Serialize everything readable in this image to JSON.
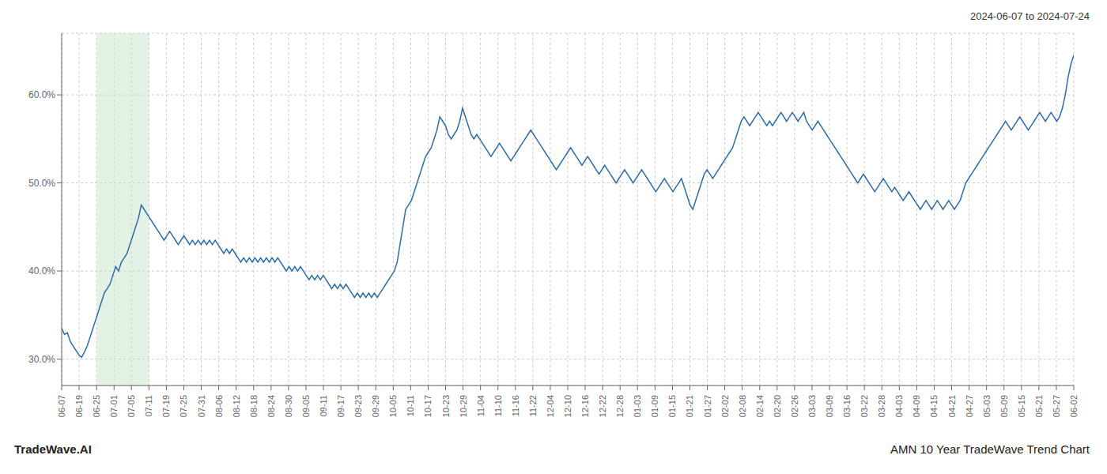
{
  "chart_data": {
    "type": "line",
    "annotations": [
      "2024-06-07 to 2024-07-24",
      "TradeWave.AI",
      "AMN 10 Year TradeWave Trend Chart"
    ],
    "color": "#2b6cb0",
    "grid": true,
    "line_style": "solid",
    "shaded_region": {
      "from": "06-25",
      "to": "07-11",
      "color": "#c8e6c9"
    },
    "ylim": [
      27.0,
      67.0
    ],
    "yticks": [
      {
        "value": 30.0,
        "label": "30.0%"
      },
      {
        "value": 40.0,
        "label": "40.0%"
      },
      {
        "value": 50.0,
        "label": "50.0%"
      },
      {
        "value": 60.0,
        "label": "60.0%"
      }
    ],
    "xlim": [
      0,
      356
    ],
    "xticks": [
      {
        "value": 0,
        "label": "06-07"
      },
      {
        "value": 6.1379,
        "label": "06-19"
      },
      {
        "value": 12.2759,
        "label": "06-25"
      },
      {
        "value": 18.4138,
        "label": "07-01"
      },
      {
        "value": 24.5517,
        "label": "07-05"
      },
      {
        "value": 30.6897,
        "label": "07-11"
      },
      {
        "value": 36.8276,
        "label": "07-19"
      },
      {
        "value": 42.9655,
        "label": "07-25"
      },
      {
        "value": 49.1034,
        "label": "07-31"
      },
      {
        "value": 55.2414,
        "label": "08-06"
      },
      {
        "value": 61.3793,
        "label": "08-12"
      },
      {
        "value": 67.5172,
        "label": "08-18"
      },
      {
        "value": 73.6552,
        "label": "08-24"
      },
      {
        "value": 79.7931,
        "label": "08-30"
      },
      {
        "value": 85.931,
        "label": "09-05"
      },
      {
        "value": 92.069,
        "label": "09-11"
      },
      {
        "value": 98.2069,
        "label": "09-17"
      },
      {
        "value": 104.3448,
        "label": "09-23"
      },
      {
        "value": 110.4828,
        "label": "09-29"
      },
      {
        "value": 116.6207,
        "label": "10-05"
      },
      {
        "value": 122.7586,
        "label": "10-11"
      },
      {
        "value": 128.8966,
        "label": "10-17"
      },
      {
        "value": 135.0345,
        "label": "10-23"
      },
      {
        "value": 141.1724,
        "label": "10-29"
      },
      {
        "value": 147.3103,
        "label": "11-04"
      },
      {
        "value": 153.4483,
        "label": "11-10"
      },
      {
        "value": 159.5862,
        "label": "11-16"
      },
      {
        "value": 165.7241,
        "label": "11-22"
      },
      {
        "value": 171.8621,
        "label": "12-04"
      },
      {
        "value": 178,
        "label": "12-10"
      },
      {
        "value": 184.1379,
        "label": "12-16"
      },
      {
        "value": 190.2759,
        "label": "12-22"
      },
      {
        "value": 196.4138,
        "label": "12-28"
      },
      {
        "value": 202.5517,
        "label": "01-03"
      },
      {
        "value": 208.6897,
        "label": "01-09"
      },
      {
        "value": 214.8276,
        "label": "01-15"
      },
      {
        "value": 220.9655,
        "label": "01-21"
      },
      {
        "value": 227.1034,
        "label": "01-27"
      },
      {
        "value": 233.2414,
        "label": "02-02"
      },
      {
        "value": 239.3793,
        "label": "02-08"
      },
      {
        "value": 245.5172,
        "label": "02-14"
      },
      {
        "value": 251.6552,
        "label": "02-20"
      },
      {
        "value": 257.7931,
        "label": "02-26"
      },
      {
        "value": 263.931,
        "label": "03-03"
      },
      {
        "value": 270.069,
        "label": "03-09"
      },
      {
        "value": 276.2069,
        "label": "03-16"
      },
      {
        "value": 282.3448,
        "label": "03-22"
      },
      {
        "value": 288.4828,
        "label": "03-28"
      },
      {
        "value": 294.6207,
        "label": "04-03"
      },
      {
        "value": 300.7586,
        "label": "04-09"
      },
      {
        "value": 306.8966,
        "label": "04-15"
      },
      {
        "value": 313.0345,
        "label": "04-21"
      },
      {
        "value": 319.1724,
        "label": "04-27"
      },
      {
        "value": 325.3103,
        "label": "05-03"
      },
      {
        "value": 331.4483,
        "label": "05-09"
      },
      {
        "value": 337.5862,
        "label": "05-15"
      },
      {
        "value": 343.7241,
        "label": "05-21"
      },
      {
        "value": 349.8621,
        "label": "05-27"
      },
      {
        "value": 356,
        "label": "06-02"
      }
    ],
    "values": [
      33.5,
      32.8,
      33.0,
      32.0,
      31.5,
      31.0,
      30.5,
      30.2,
      30.8,
      31.5,
      32.5,
      33.5,
      34.5,
      35.5,
      36.5,
      37.5,
      38.0,
      38.5,
      39.5,
      40.5,
      40.0,
      41.0,
      41.5,
      42.0,
      43.0,
      44.0,
      45.0,
      46.0,
      47.5,
      47.0,
      46.5,
      46.0,
      45.5,
      45.0,
      44.5,
      44.0,
      43.5,
      44.0,
      44.5,
      44.0,
      43.5,
      43.0,
      43.5,
      44.0,
      43.5,
      43.0,
      43.5,
      43.0,
      43.5,
      43.0,
      43.5,
      43.0,
      43.5,
      43.0,
      43.5,
      43.0,
      42.5,
      42.0,
      42.5,
      42.0,
      42.5,
      42.0,
      41.5,
      41.0,
      41.5,
      41.0,
      41.5,
      41.0,
      41.5,
      41.0,
      41.5,
      41.0,
      41.5,
      41.0,
      41.5,
      41.0,
      41.5,
      41.0,
      40.5,
      40.0,
      40.5,
      40.0,
      40.5,
      40.0,
      40.5,
      40.0,
      39.5,
      39.0,
      39.5,
      39.0,
      39.5,
      39.0,
      39.5,
      39.0,
      38.5,
      38.0,
      38.5,
      38.0,
      38.5,
      38.0,
      38.5,
      38.0,
      37.5,
      37.0,
      37.5,
      37.0,
      37.5,
      37.0,
      37.5,
      37.0,
      37.5,
      37.0,
      37.5,
      38.0,
      38.5,
      39.0,
      39.5,
      40.0,
      41.0,
      43.0,
      45.0,
      47.0,
      47.5,
      48.0,
      49.0,
      50.0,
      51.0,
      52.0,
      53.0,
      53.5,
      54.0,
      55.0,
      56.0,
      57.5,
      57.0,
      56.5,
      55.5,
      55.0,
      55.5,
      56.0,
      57.0,
      58.5,
      57.5,
      56.5,
      55.5,
      55.0,
      55.5,
      55.0,
      54.5,
      54.0,
      53.5,
      53.0,
      53.5,
      54.0,
      54.5,
      54.0,
      53.5,
      53.0,
      52.5,
      53.0,
      53.5,
      54.0,
      54.5,
      55.0,
      55.5,
      56.0,
      55.5,
      55.0,
      54.5,
      54.0,
      53.5,
      53.0,
      52.5,
      52.0,
      51.5,
      52.0,
      52.5,
      53.0,
      53.5,
      54.0,
      53.5,
      53.0,
      52.5,
      52.0,
      52.5,
      53.0,
      52.5,
      52.0,
      51.5,
      51.0,
      51.5,
      52.0,
      51.5,
      51.0,
      50.5,
      50.0,
      50.5,
      51.0,
      51.5,
      51.0,
      50.5,
      50.0,
      50.5,
      51.0,
      51.5,
      51.0,
      50.5,
      50.0,
      49.5,
      49.0,
      49.5,
      50.0,
      50.5,
      50.0,
      49.5,
      49.0,
      49.5,
      50.0,
      50.5,
      49.5,
      48.5,
      47.5,
      47.0,
      48.0,
      49.0,
      50.0,
      51.0,
      51.5,
      51.0,
      50.5,
      51.0,
      51.5,
      52.0,
      52.5,
      53.0,
      53.5,
      54.0,
      55.0,
      56.0,
      57.0,
      57.5,
      57.0,
      56.5,
      57.0,
      57.5,
      58.0,
      57.5,
      57.0,
      56.5,
      57.0,
      56.5,
      57.0,
      57.5,
      58.0,
      57.5,
      57.0,
      57.5,
      58.0,
      57.5,
      57.0,
      57.5,
      58.0,
      57.0,
      56.5,
      56.0,
      56.5,
      57.0,
      56.5,
      56.0,
      55.5,
      55.0,
      54.5,
      54.0,
      53.5,
      53.0,
      52.5,
      52.0,
      51.5,
      51.0,
      50.5,
      50.0,
      50.5,
      51.0,
      50.5,
      50.0,
      49.5,
      49.0,
      49.5,
      50.0,
      50.5,
      50.0,
      49.5,
      49.0,
      49.5,
      49.0,
      48.5,
      48.0,
      48.5,
      49.0,
      48.5,
      48.0,
      47.5,
      47.0,
      47.5,
      48.0,
      47.5,
      47.0,
      47.5,
      48.0,
      47.5,
      47.0,
      47.5,
      48.0,
      47.5,
      47.0,
      47.5,
      48.0,
      49.0,
      50.0,
      50.5,
      51.0,
      51.5,
      52.0,
      52.5,
      53.0,
      53.5,
      54.0,
      54.5,
      55.0,
      55.5,
      56.0,
      56.5,
      57.0,
      56.5,
      56.0,
      56.5,
      57.0,
      57.5,
      57.0,
      56.5,
      56.0,
      56.5,
      57.0,
      57.5,
      58.0,
      57.5,
      57.0,
      57.5,
      58.0,
      57.5,
      57.0,
      57.5,
      58.5,
      60.0,
      62.0,
      63.5,
      64.5
    ]
  }
}
